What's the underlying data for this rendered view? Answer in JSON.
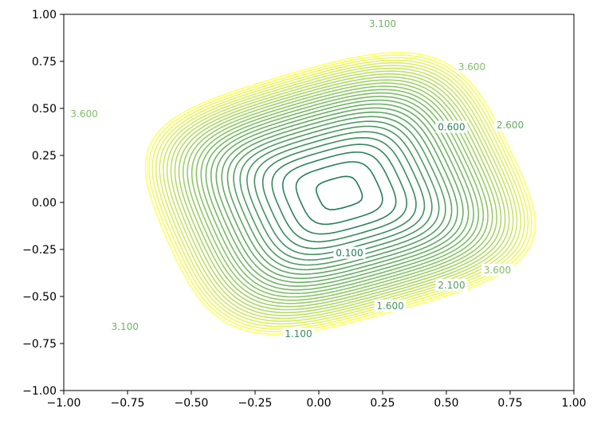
{
  "chart_data": {
    "type": "contour",
    "title": "",
    "xlabel": "",
    "ylabel": "",
    "xlim": [
      -1.0,
      1.0
    ],
    "ylim": [
      -1.0,
      1.0
    ],
    "x_ticks": [
      "−1.00",
      "−0.75",
      "−0.50",
      "−0.25",
      "0.00",
      "0.25",
      "0.50",
      "0.75",
      "1.00"
    ],
    "y_ticks": [
      "1.00",
      "0.75",
      "0.50",
      "0.25",
      "0.00",
      "−0.25",
      "−0.50",
      "−0.75",
      "−1.00"
    ],
    "grid": false,
    "colormap": "summer",
    "contour_levels": [
      0.1,
      0.6,
      1.1,
      1.6,
      2.1,
      2.6,
      3.1,
      3.6
    ],
    "inline_labels": [
      {
        "text": "0.100",
        "x": 0.12,
        "y": -0.27
      },
      {
        "text": "0.600",
        "x": 0.52,
        "y": 0.4
      },
      {
        "text": "1.100",
        "x": -0.08,
        "y": -0.7
      },
      {
        "text": "1.600",
        "x": 0.28,
        "y": -0.55
      },
      {
        "text": "2.100",
        "x": 0.52,
        "y": -0.44
      },
      {
        "text": "2.600",
        "x": 0.75,
        "y": 0.41
      },
      {
        "text": "3.100",
        "x": 0.25,
        "y": 0.95
      },
      {
        "text": "3.600",
        "x": -0.92,
        "y": 0.47
      },
      {
        "text": "3.600",
        "x": 0.6,
        "y": 0.72
      },
      {
        "text": "3.600",
        "x": 0.7,
        "y": -0.36
      },
      {
        "text": "3.100",
        "x": -0.76,
        "y": -0.66
      }
    ],
    "colors": {
      "low": "#1f7a5a",
      "mid": "#7fbf66",
      "high": "#ffff66"
    }
  }
}
